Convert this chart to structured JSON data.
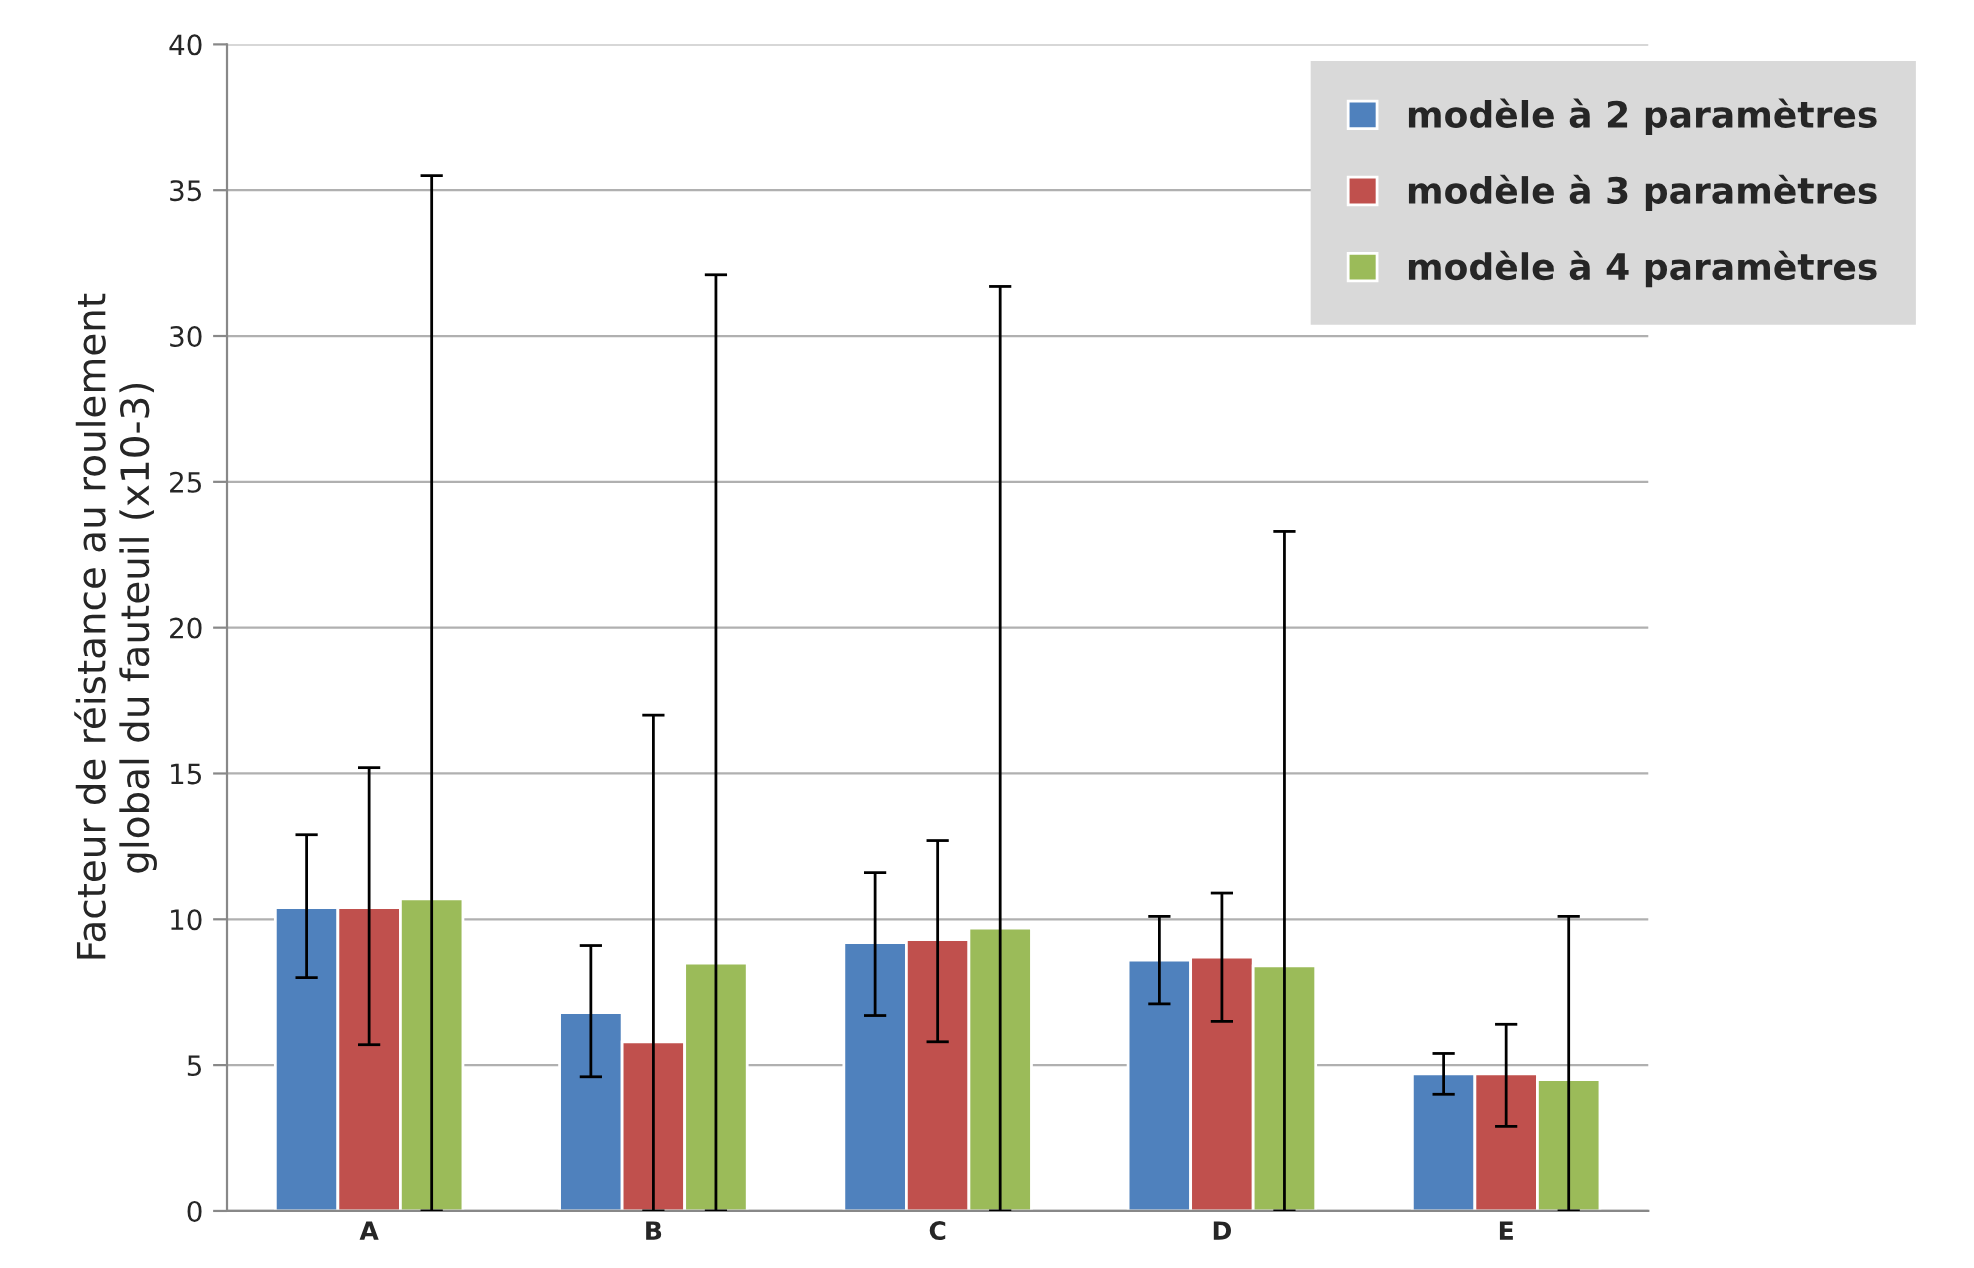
{
  "chart_data": {
    "type": "bar",
    "ylabel": "Facteur de réistance au roulement\nglobal du fauteuil (x10-3)",
    "categories": [
      "A",
      "B",
      "C",
      "D",
      "E"
    ],
    "series": [
      {
        "name": "modèle à 2 paramètres",
        "color": "#4f81bd",
        "values": [
          10.4,
          6.8,
          9.2,
          8.6,
          4.7
        ],
        "errors": [
          [
            8.0,
            12.9
          ],
          [
            4.6,
            9.1
          ],
          [
            6.7,
            11.6
          ],
          [
            7.1,
            10.1
          ],
          [
            4.0,
            5.4
          ]
        ]
      },
      {
        "name": "modèle à 3 paramètres",
        "color": "#c0504d",
        "values": [
          10.4,
          5.8,
          9.3,
          8.7,
          4.7
        ],
        "errors": [
          [
            5.7,
            15.2
          ],
          [
            0,
            17.0
          ],
          [
            5.8,
            12.7
          ],
          [
            6.5,
            10.9
          ],
          [
            2.9,
            6.4
          ]
        ]
      },
      {
        "name": "modèle à 4 paramètres",
        "color": "#9bbb59",
        "values": [
          10.7,
          8.5,
          9.7,
          8.4,
          4.5
        ],
        "errors": [
          [
            0,
            35.5
          ],
          [
            0,
            32.1
          ],
          [
            0,
            31.7
          ],
          [
            0,
            23.3
          ],
          [
            0,
            10.1
          ]
        ]
      }
    ],
    "ylim": [
      0,
      40
    ],
    "yticks": [
      0,
      5,
      10,
      15,
      20,
      25,
      30,
      35,
      40
    ],
    "grid": "y",
    "legend": "top right"
  }
}
